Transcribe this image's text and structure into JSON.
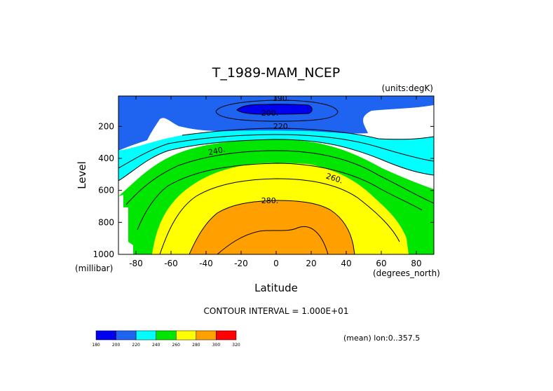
{
  "chart_data": {
    "type": "contour",
    "title": "T_1989-MAM_NCEP",
    "units_label": "(units:degK)",
    "xlabel": "Latitude",
    "ylabel": "Level",
    "x_units_label": "(degrees_north)",
    "y_units_label": "(millibar)",
    "xlim": [
      -90,
      90
    ],
    "ylim": [
      1000,
      10
    ],
    "y_inverted": true,
    "x_ticks": [
      -80,
      -60,
      -40,
      -20,
      0,
      20,
      40,
      60,
      80
    ],
    "y_ticks": [
      200,
      400,
      600,
      800,
      1000
    ],
    "contour_interval_text": "CONTOUR INTERVAL = 1.000E+01",
    "footer_text": "(mean) lon:0..357.5",
    "contour_line_labels": [
      "190.",
      "200.",
      "220.",
      "240.",
      "260.",
      "280."
    ],
    "colorbar": {
      "colors": [
        "#0000f0",
        "#1e64f0",
        "#00ffff",
        "#00e600",
        "#ffff00",
        "#ffa000",
        "#ff0000"
      ],
      "labels": [
        "180",
        "200",
        "220",
        "240",
        "260",
        "280",
        "300",
        "320"
      ]
    }
  }
}
